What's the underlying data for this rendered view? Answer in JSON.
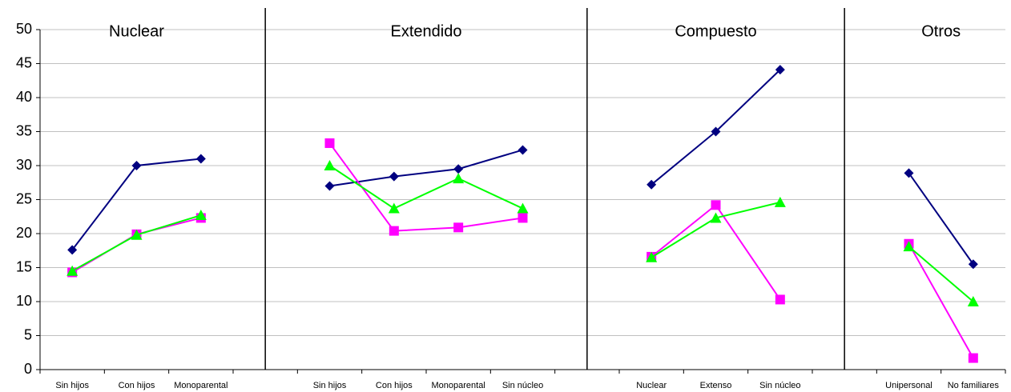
{
  "chart_data": {
    "type": "line",
    "groups": [
      "Nuclear",
      "Extendido",
      "Compuesto",
      "Otros"
    ],
    "categories": [
      "Sin hijos",
      "Con hijos",
      "Monoparental",
      null,
      "Sin hijos",
      "Con hijos",
      "Monoparental",
      "Sin núcleo",
      null,
      "Nuclear",
      "Extenso",
      "Sin núcleo",
      null,
      "Unipersonal",
      "No familiares"
    ],
    "series": [
      {
        "color": "#000080",
        "marker": "diamond",
        "values": [
          17.6,
          30,
          31,
          null,
          27,
          28.4,
          29.5,
          32.3,
          null,
          27.2,
          35,
          44.1,
          null,
          28.9,
          15.5
        ]
      },
      {
        "color": "#ff00ff",
        "marker": "square",
        "values": [
          14.3,
          19.9,
          22.3,
          null,
          33.3,
          20.4,
          20.9,
          22.3,
          null,
          16.6,
          24.2,
          10.3,
          null,
          18.5,
          1.7
        ]
      },
      {
        "color": "#00ff00",
        "marker": "triangle",
        "values": [
          14.5,
          19.8,
          22.7,
          null,
          30,
          23.7,
          28.1,
          23.7,
          null,
          16.5,
          22.3,
          24.6,
          null,
          18.1,
          10
        ]
      }
    ],
    "ylim": [
      0,
      50
    ],
    "yticks": [
      0,
      5,
      10,
      15,
      20,
      25,
      30,
      35,
      40,
      45,
      50
    ],
    "grid": true
  }
}
